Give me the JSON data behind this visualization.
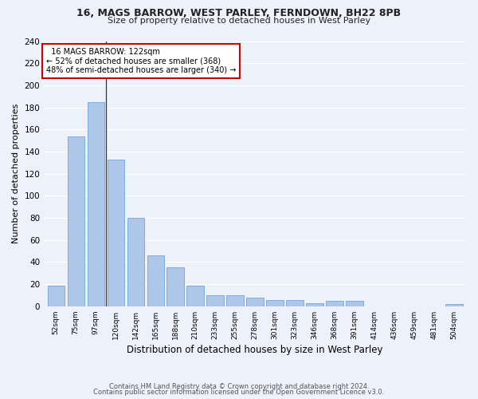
{
  "title_line1": "16, MAGS BARROW, WEST PARLEY, FERNDOWN, BH22 8PB",
  "title_line2": "Size of property relative to detached houses in West Parley",
  "xlabel": "Distribution of detached houses by size in West Parley",
  "ylabel": "Number of detached properties",
  "categories": [
    "52sqm",
    "75sqm",
    "97sqm",
    "120sqm",
    "142sqm",
    "165sqm",
    "188sqm",
    "210sqm",
    "233sqm",
    "255sqm",
    "278sqm",
    "301sqm",
    "323sqm",
    "346sqm",
    "368sqm",
    "391sqm",
    "414sqm",
    "436sqm",
    "459sqm",
    "481sqm",
    "504sqm"
  ],
  "values": [
    19,
    154,
    185,
    133,
    80,
    46,
    35,
    19,
    10,
    10,
    8,
    6,
    6,
    3,
    5,
    5,
    0,
    0,
    0,
    0,
    2
  ],
  "bar_color": "#aec6e8",
  "bar_edge_color": "#5b9bd5",
  "annotation_text_line1": "  16 MAGS BARROW: 122sqm",
  "annotation_text_line2": "← 52% of detached houses are smaller (368)",
  "annotation_text_line3": "48% of semi-detached houses are larger (340) →",
  "annotation_box_color": "#ffffff",
  "annotation_box_edge": "#cc0000",
  "subject_line_color": "#333333",
  "ylim": [
    0,
    240
  ],
  "yticks": [
    0,
    20,
    40,
    60,
    80,
    100,
    120,
    140,
    160,
    180,
    200,
    220,
    240
  ],
  "footer_line1": "Contains HM Land Registry data © Crown copyright and database right 2024.",
  "footer_line2": "Contains public sector information licensed under the Open Government Licence v3.0.",
  "bg_color": "#edf2fa",
  "plot_bg_color": "#edf2fa",
  "grid_color": "#ffffff"
}
